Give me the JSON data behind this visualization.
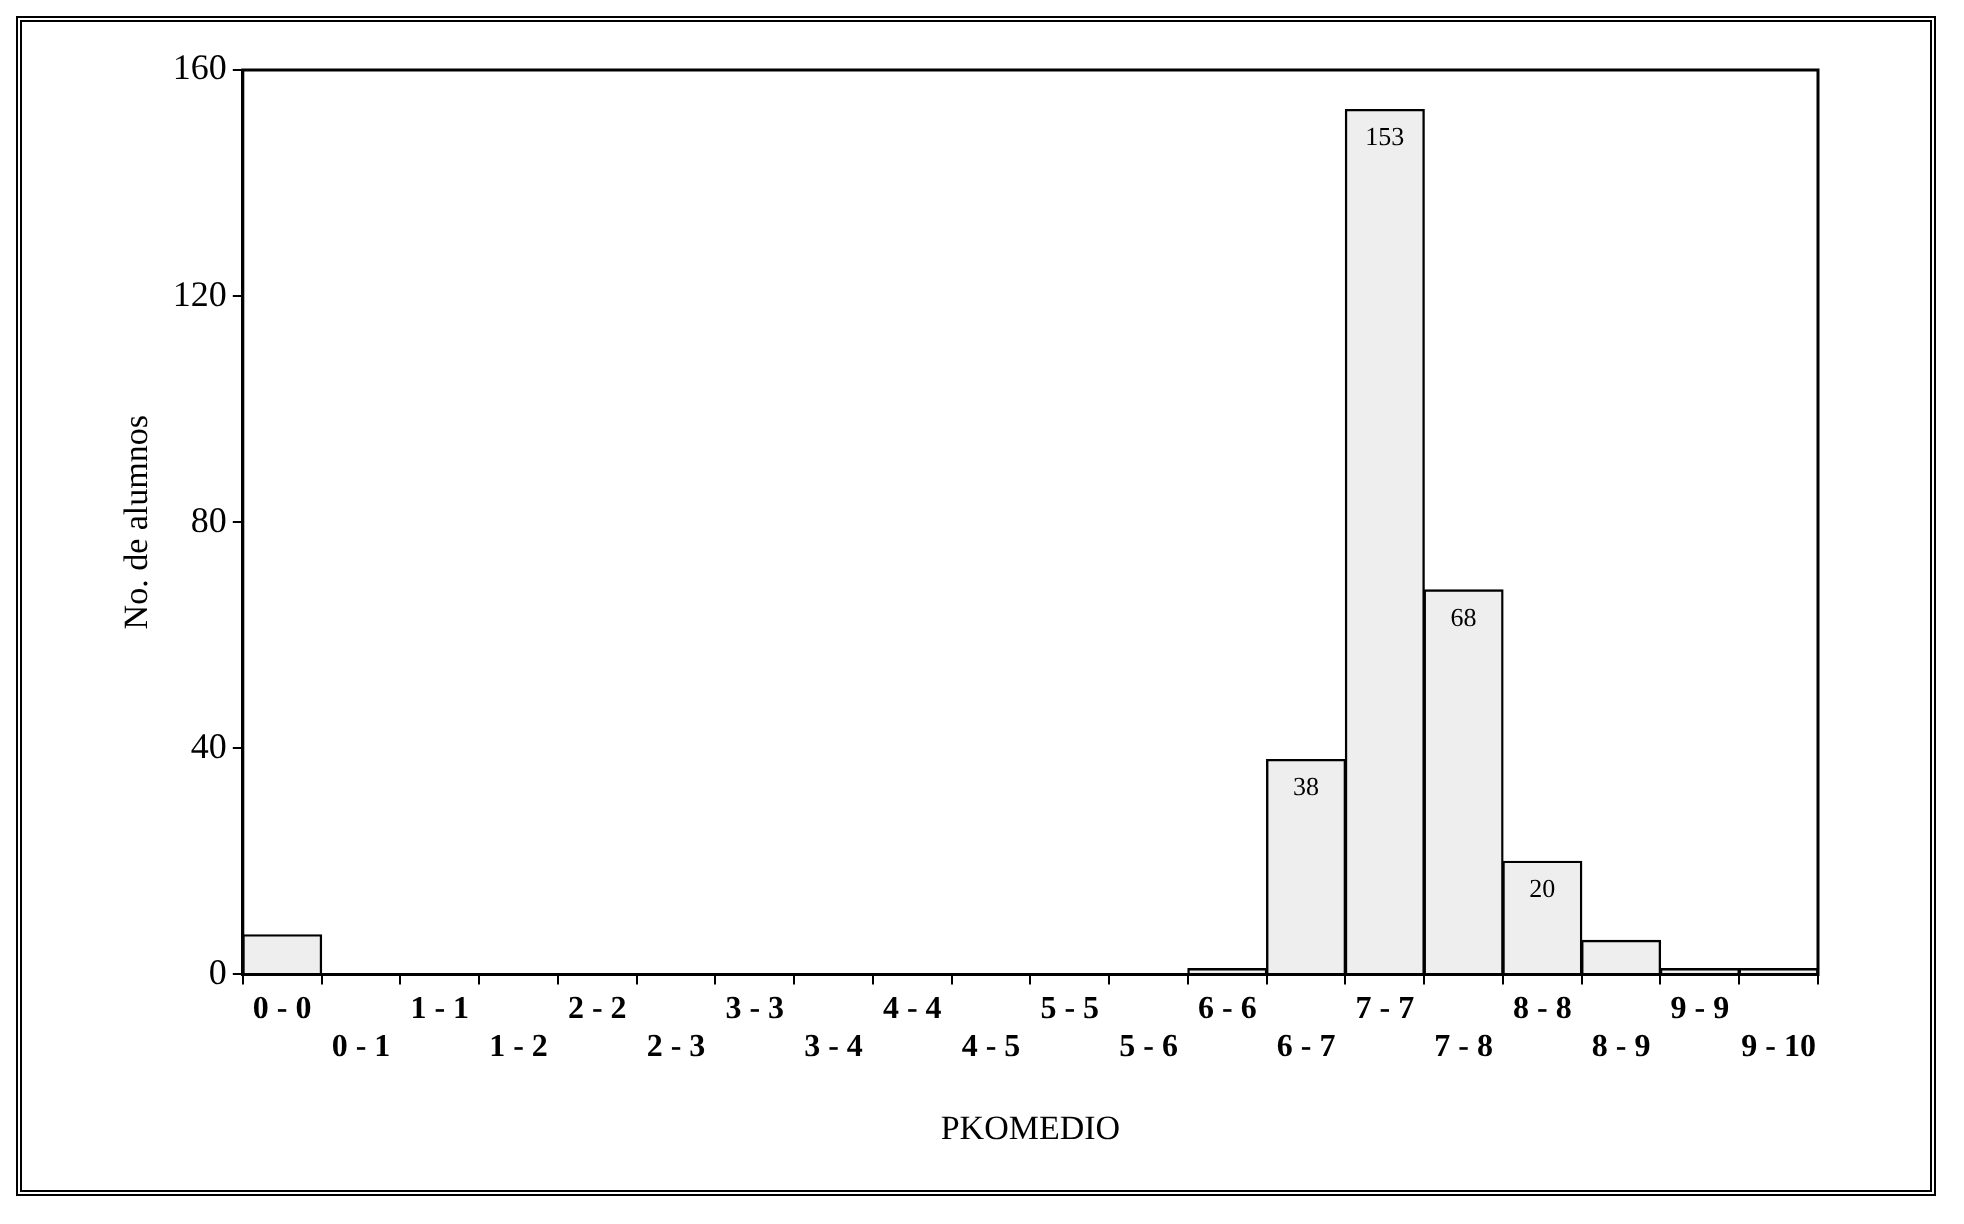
{
  "chart_data": {
    "type": "bar",
    "categories": [
      "0 - 0",
      "0 - 1",
      "1 - 1",
      "1 - 2",
      "2 - 2",
      "2 - 3",
      "3 - 3",
      "3 - 4",
      "4 - 4",
      "4 - 5",
      "5 - 5",
      "5 - 6",
      "6 - 6",
      "6 - 7",
      "7 - 7",
      "7 - 8",
      "8 - 8",
      "8 - 9",
      "9 - 9",
      "9 - 10"
    ],
    "values": [
      7,
      0,
      0,
      0,
      0,
      0,
      0,
      0,
      0,
      0,
      0,
      0,
      1,
      38,
      153,
      68,
      20,
      6,
      1,
      1
    ],
    "value_labels": [
      null,
      null,
      null,
      null,
      null,
      null,
      null,
      null,
      null,
      null,
      null,
      null,
      null,
      "38",
      "153",
      "68",
      "20",
      null,
      null,
      null
    ],
    "color": "#eeeeee",
    "xlabel": "PKOMEDIO",
    "ylabel": "No. de alumnos",
    "ylim": [
      0,
      160
    ],
    "yticks": [
      0,
      40,
      80,
      120,
      160
    ],
    "grid": false,
    "legend": false
  }
}
